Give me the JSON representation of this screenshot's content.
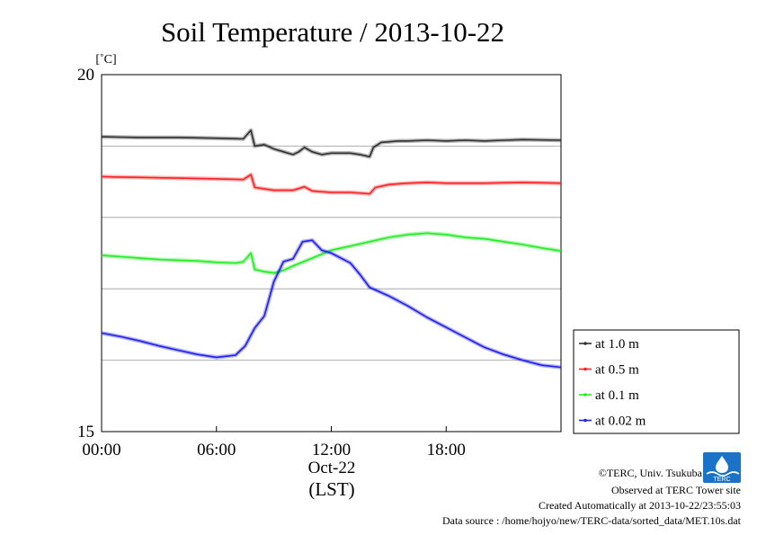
{
  "chart_data": {
    "type": "line",
    "title": "Soil Temperature / 2013-10-22",
    "ylabel_unit": "[˚C]",
    "ylim": [
      15,
      20
    ],
    "y_tick_labels": [
      {
        "value": 15,
        "label": "15"
      },
      {
        "value": 20,
        "label": "20"
      }
    ],
    "y_gridlines": [
      16,
      17,
      18,
      19
    ],
    "xlim": [
      0,
      24
    ],
    "x_ticks": [
      {
        "value": 0,
        "label": "00:00"
      },
      {
        "value": 6,
        "label": "06:00"
      },
      {
        "value": 12,
        "label": "12:00"
      },
      {
        "value": 18,
        "label": "18:00"
      }
    ],
    "x_date_label": "Oct-22",
    "x_zone_label": "(LST)",
    "legend_position": "right",
    "series": [
      {
        "name": "at 1.0 m",
        "color": "#303030",
        "points": [
          [
            0,
            19.13
          ],
          [
            2,
            19.12
          ],
          [
            4,
            19.12
          ],
          [
            6,
            19.11
          ],
          [
            7.4,
            19.1
          ],
          [
            7.8,
            19.22
          ],
          [
            8.0,
            19.0
          ],
          [
            8.5,
            19.02
          ],
          [
            9,
            18.96
          ],
          [
            9.5,
            18.92
          ],
          [
            10,
            18.88
          ],
          [
            10.3,
            18.92
          ],
          [
            10.6,
            18.98
          ],
          [
            11,
            18.92
          ],
          [
            11.5,
            18.88
          ],
          [
            12,
            18.9
          ],
          [
            12.5,
            18.9
          ],
          [
            13,
            18.9
          ],
          [
            13.5,
            18.88
          ],
          [
            14.0,
            18.85
          ],
          [
            14.2,
            18.98
          ],
          [
            14.6,
            19.05
          ],
          [
            15.5,
            19.07
          ],
          [
            16,
            19.07
          ],
          [
            17,
            19.08
          ],
          [
            18,
            19.07
          ],
          [
            19,
            19.08
          ],
          [
            20,
            19.07
          ],
          [
            21,
            19.08
          ],
          [
            22,
            19.09
          ],
          [
            24,
            19.08
          ]
        ]
      },
      {
        "name": "at 0.5 m",
        "color": "#ff2020",
        "points": [
          [
            0,
            18.57
          ],
          [
            2,
            18.56
          ],
          [
            4,
            18.55
          ],
          [
            6,
            18.54
          ],
          [
            7.4,
            18.53
          ],
          [
            7.8,
            18.6
          ],
          [
            8.0,
            18.42
          ],
          [
            9,
            18.38
          ],
          [
            10,
            18.38
          ],
          [
            10.6,
            18.43
          ],
          [
            11,
            18.37
          ],
          [
            12,
            18.35
          ],
          [
            13,
            18.35
          ],
          [
            14.0,
            18.33
          ],
          [
            14.3,
            18.42
          ],
          [
            15,
            18.46
          ],
          [
            16,
            18.48
          ],
          [
            17,
            18.49
          ],
          [
            18,
            18.48
          ],
          [
            19,
            18.48
          ],
          [
            20,
            18.48
          ],
          [
            22,
            18.49
          ],
          [
            24,
            18.48
          ]
        ]
      },
      {
        "name": "at 0.1 m",
        "color": "#20ee20",
        "points": [
          [
            0,
            17.47
          ],
          [
            1,
            17.45
          ],
          [
            2,
            17.43
          ],
          [
            3,
            17.41
          ],
          [
            4,
            17.4
          ],
          [
            5,
            17.39
          ],
          [
            6,
            17.37
          ],
          [
            7,
            17.36
          ],
          [
            7.4,
            17.38
          ],
          [
            7.8,
            17.5
          ],
          [
            8.0,
            17.27
          ],
          [
            8.5,
            17.24
          ],
          [
            9,
            17.22
          ],
          [
            9.5,
            17.26
          ],
          [
            10,
            17.32
          ],
          [
            11,
            17.43
          ],
          [
            12,
            17.54
          ],
          [
            13,
            17.6
          ],
          [
            14,
            17.66
          ],
          [
            15,
            17.72
          ],
          [
            16,
            17.76
          ],
          [
            17,
            17.78
          ],
          [
            18,
            17.76
          ],
          [
            19,
            17.72
          ],
          [
            20,
            17.7
          ],
          [
            21,
            17.66
          ],
          [
            22,
            17.62
          ],
          [
            23,
            17.57
          ],
          [
            24,
            17.53
          ]
        ]
      },
      {
        "name": "at 0.02 m",
        "color": "#2020ee",
        "points": [
          [
            0,
            16.38
          ],
          [
            1,
            16.33
          ],
          [
            2,
            16.27
          ],
          [
            3,
            16.2
          ],
          [
            4,
            16.14
          ],
          [
            5,
            16.08
          ],
          [
            6,
            16.04
          ],
          [
            7,
            16.07
          ],
          [
            7.5,
            16.2
          ],
          [
            8,
            16.45
          ],
          [
            8.5,
            16.62
          ],
          [
            9,
            17.1
          ],
          [
            9.5,
            17.38
          ],
          [
            10,
            17.42
          ],
          [
            10.5,
            17.66
          ],
          [
            11,
            17.68
          ],
          [
            11.5,
            17.54
          ],
          [
            12,
            17.5
          ],
          [
            13,
            17.36
          ],
          [
            13.5,
            17.2
          ],
          [
            14,
            17.02
          ],
          [
            15,
            16.9
          ],
          [
            16,
            16.76
          ],
          [
            17,
            16.6
          ],
          [
            18,
            16.46
          ],
          [
            19,
            16.32
          ],
          [
            20,
            16.18
          ],
          [
            21,
            16.08
          ],
          [
            22,
            16.0
          ],
          [
            23,
            15.93
          ],
          [
            24,
            15.9
          ]
        ]
      }
    ]
  },
  "credits": {
    "copyright": "©TERC, Univ. Tsukuba",
    "observed": "Observed at TERC Tower site",
    "created": "Created Automatically at 2013-10-22/23:55:03",
    "source": "Data source : /home/hojyo/new/TERC-data/sorted_data/MET.10s.dat"
  },
  "logo": {
    "icon": "terc-logo",
    "text": "TERC",
    "color": "#1a73c8"
  }
}
